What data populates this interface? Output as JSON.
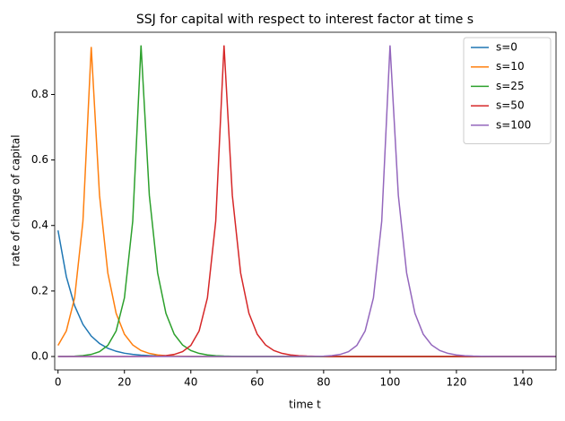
{
  "chart_data": {
    "type": "line",
    "title": "SSJ for capital with respect to interest factor at time s",
    "xlabel": "time t",
    "ylabel": "rate of change of capital",
    "x": [
      0,
      2.5,
      5,
      7.5,
      10,
      12.5,
      15,
      17.5,
      20,
      22.5,
      25,
      27.5,
      30,
      32.5,
      35,
      37.5,
      40,
      42.5,
      45,
      47.5,
      50,
      52.5,
      55,
      57.5,
      60,
      62.5,
      65,
      67.5,
      70,
      72.5,
      75,
      77.5,
      80,
      82.5,
      85,
      87.5,
      90,
      92.5,
      95,
      97.5,
      100,
      102.5,
      105,
      107.5,
      110,
      112.5,
      115,
      117.5,
      120,
      122.5,
      125,
      127.5,
      130,
      132.5,
      135,
      137.5,
      140,
      142.5,
      145,
      147.5,
      150
    ],
    "series": [
      {
        "name": "s=0",
        "color": "#1f77b4",
        "values": [
          0.385,
          0.244,
          0.155,
          0.098,
          0.0625,
          0.0397,
          0.0252,
          0.016,
          0.0101,
          0.0064,
          0.0041,
          0.0026,
          0.0017,
          0.0011,
          0.0007,
          0.0004,
          0,
          0,
          0,
          0,
          0,
          0,
          0,
          0,
          0,
          0,
          0,
          0,
          0,
          0,
          0,
          0,
          0,
          0,
          0,
          0,
          0,
          0,
          0,
          0,
          0,
          0,
          0,
          0,
          0,
          0,
          0,
          0,
          0,
          0,
          0,
          0,
          0,
          0,
          0,
          0,
          0,
          0,
          0,
          0,
          0
        ]
      },
      {
        "name": "s=10",
        "color": "#ff7f0e",
        "values": [
          0.034,
          0.078,
          0.179,
          0.413,
          0.945,
          0.492,
          0.255,
          0.132,
          0.068,
          0.0354,
          0.0183,
          0.0095,
          0.0049,
          0.0025,
          0.0013,
          0.0007,
          0.0004,
          0,
          0,
          0,
          0,
          0,
          0,
          0,
          0,
          0,
          0,
          0,
          0,
          0,
          0,
          0,
          0,
          0,
          0,
          0,
          0,
          0,
          0,
          0,
          0,
          0,
          0,
          0,
          0,
          0,
          0,
          0,
          0,
          0,
          0,
          0,
          0,
          0,
          0,
          0,
          0,
          0,
          0,
          0,
          0
        ]
      },
      {
        "name": "s=25",
        "color": "#2ca02c",
        "values": [
          0.0002,
          0.0005,
          0.0012,
          0.0028,
          0.0064,
          0.0147,
          0.034,
          0.078,
          0.179,
          0.413,
          0.95,
          0.492,
          0.255,
          0.132,
          0.068,
          0.0354,
          0.0183,
          0.0095,
          0.0049,
          0.0025,
          0.0013,
          0.0007,
          0.0004,
          0,
          0,
          0,
          0,
          0,
          0,
          0,
          0,
          0,
          0,
          0,
          0,
          0,
          0,
          0,
          0,
          0,
          0,
          0,
          0,
          0,
          0,
          0,
          0,
          0,
          0,
          0,
          0,
          0,
          0,
          0,
          0,
          0,
          0,
          0,
          0,
          0,
          0
        ]
      },
      {
        "name": "s=50",
        "color": "#d62728",
        "values": [
          0,
          0,
          0,
          0,
          0,
          0,
          0,
          0,
          0,
          0,
          0.0002,
          0.0005,
          0.0012,
          0.0028,
          0.0064,
          0.0147,
          0.034,
          0.078,
          0.179,
          0.413,
          0.95,
          0.492,
          0.255,
          0.132,
          0.068,
          0.0354,
          0.0183,
          0.0095,
          0.0049,
          0.0025,
          0.0013,
          0.0007,
          0.0004,
          0,
          0,
          0,
          0,
          0,
          0,
          0,
          0,
          0,
          0,
          0,
          0,
          0,
          0,
          0,
          0,
          0,
          0,
          0,
          0,
          0,
          0,
          0,
          0,
          0,
          0,
          0,
          0
        ]
      },
      {
        "name": "s=100",
        "color": "#9467bd",
        "values": [
          0,
          0,
          0,
          0,
          0,
          0,
          0,
          0,
          0,
          0,
          0,
          0,
          0,
          0,
          0,
          0,
          0,
          0,
          0,
          0,
          0,
          0,
          0,
          0,
          0,
          0,
          0,
          0,
          0,
          0,
          0.0002,
          0.0005,
          0.0012,
          0.0028,
          0.0064,
          0.0147,
          0.034,
          0.078,
          0.179,
          0.413,
          0.95,
          0.492,
          0.255,
          0.132,
          0.068,
          0.0354,
          0.0183,
          0.0095,
          0.0049,
          0.0025,
          0.0013,
          0.0007,
          0.0004,
          0,
          0,
          0,
          0,
          0,
          0,
          0,
          0
        ]
      }
    ],
    "xlim": [
      -1,
      150
    ],
    "ylim": [
      -0.041,
      0.99
    ],
    "xticks": [
      0,
      20,
      40,
      60,
      80,
      100,
      120,
      140
    ],
    "yticks": [
      {
        "value": 0,
        "label": "0.0"
      },
      {
        "value": 0.2,
        "label": "0.2"
      },
      {
        "value": 0.4,
        "label": "0.4"
      },
      {
        "value": 0.6,
        "label": "0.6"
      },
      {
        "value": 0.8,
        "label": "0.8"
      }
    ],
    "legend": "upper right",
    "grid": false
  }
}
